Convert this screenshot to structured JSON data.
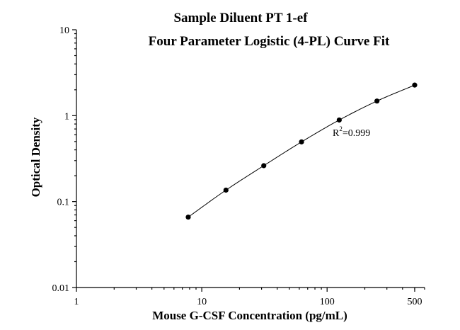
{
  "chart_data": {
    "type": "scatter",
    "title": "Sample Diluent PT 1-ef",
    "subtitle": "Four Parameter Logistic (4-PL) Curve Fit",
    "xlabel": "Mouse G-CSF Concentration (pg/mL)",
    "ylabel": "Optical Density",
    "x_scale": "log",
    "y_scale": "log",
    "xlim": [
      1,
      600
    ],
    "ylim": [
      0.01,
      10
    ],
    "x_ticks": [
      1,
      10,
      100,
      500
    ],
    "x_tick_labels": [
      "1",
      "10",
      "100",
      "500"
    ],
    "y_ticks": [
      0.01,
      0.1,
      1,
      10
    ],
    "y_tick_labels": [
      "0.01",
      "0.1",
      "1",
      "10"
    ],
    "grid": false,
    "series": [
      {
        "x": [
          7.8,
          15.6,
          31.25,
          62.5,
          125,
          250,
          500
        ],
        "y": [
          0.066,
          0.136,
          0.262,
          0.495,
          0.89,
          1.48,
          2.27
        ]
      }
    ],
    "fit_curve": "4-PL",
    "annotation": {
      "r2_label": "R",
      "r2_exp": "2",
      "r2_value": "=0.999"
    }
  }
}
